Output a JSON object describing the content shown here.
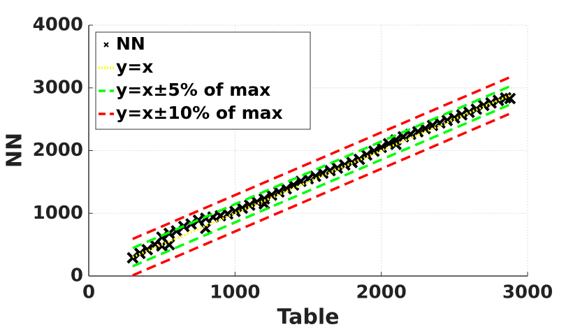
{
  "chart_data": {
    "type": "scatter",
    "xlabel": "Table",
    "ylabel": "NN",
    "xlim": [
      0,
      3000
    ],
    "ylim": [
      0,
      4000
    ],
    "xticks": [
      0,
      1000,
      2000,
      3000
    ],
    "yticks": [
      0,
      1000,
      2000,
      3000,
      4000
    ],
    "grid": true,
    "legend": "upper left",
    "series": [
      {
        "name": "NN",
        "color": "#000000",
        "marker": "x",
        "x": [
          300,
          350,
          400,
          450,
          500,
          550,
          600,
          650,
          700,
          750,
          800,
          850,
          900,
          950,
          1000,
          1050,
          1100,
          1150,
          1200,
          1250,
          1300,
          1350,
          1400,
          1450,
          1500,
          1550,
          1600,
          1650,
          1700,
          1750,
          1800,
          1850,
          1900,
          1950,
          2000,
          2050,
          2100,
          2150,
          2200,
          2250,
          2300,
          2350,
          2400,
          2450,
          2500,
          2550,
          2600,
          2650,
          2700,
          2750,
          2800,
          2850,
          2880,
          500,
          550,
          800,
          1200,
          2100
        ],
        "values": [
          290,
          360,
          420,
          500,
          620,
          680,
          720,
          790,
          830,
          890,
          920,
          940,
          960,
          990,
          1030,
          1080,
          1130,
          1180,
          1230,
          1290,
          1340,
          1390,
          1450,
          1510,
          1550,
          1590,
          1640,
          1680,
          1720,
          1770,
          1810,
          1860,
          1930,
          1990,
          2050,
          2110,
          2170,
          2220,
          2260,
          2300,
          2350,
          2400,
          2440,
          2480,
          2520,
          2570,
          2610,
          2660,
          2720,
          2760,
          2800,
          2840,
          2830,
          480,
          500,
          760,
          1150,
          2100
        ]
      },
      {
        "name": "y=x",
        "color": "#ffff00",
        "dash": "dotted",
        "x": [
          300,
          2890
        ],
        "values": [
          300,
          2890
        ]
      },
      {
        "name": "y=x±5% of max",
        "color": "#00ff00",
        "dash": "dashed",
        "x": [
          300,
          2890
        ],
        "upper": [
          445,
          3035
        ],
        "lower": [
          155,
          2745
        ]
      },
      {
        "name": "y=x±10% of max",
        "color": "#ff0000",
        "dash": "dashed",
        "x": [
          300,
          2890
        ],
        "upper": [
          590,
          3180
        ],
        "lower": [
          10,
          2600
        ]
      }
    ]
  }
}
